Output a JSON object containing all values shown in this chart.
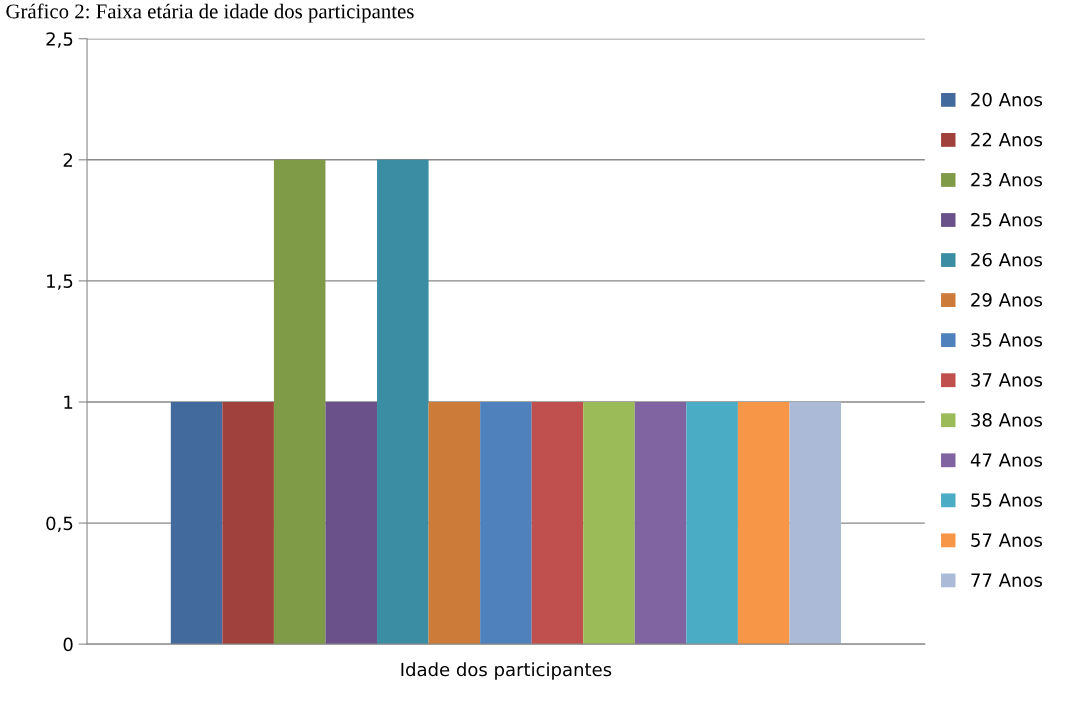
{
  "chart_data": {
    "type": "bar",
    "title": "Gráfico 2: Faixa etária de idade dos participantes",
    "categories": [
      "Idade dos participantes"
    ],
    "series": [
      {
        "name": "20 Anos",
        "color": "#426a9c",
        "values": [
          1
        ]
      },
      {
        "name": "22 Anos",
        "color": "#a0413e",
        "values": [
          1
        ]
      },
      {
        "name": "23 Anos",
        "color": "#809b47",
        "values": [
          2
        ]
      },
      {
        "name": "25 Anos",
        "color": "#6a5189",
        "values": [
          1
        ]
      },
      {
        "name": "26 Anos",
        "color": "#3b8da4",
        "values": [
          2
        ]
      },
      {
        "name": "29 Anos",
        "color": "#cc7b38",
        "values": [
          1
        ]
      },
      {
        "name": "35 Anos",
        "color": "#4f81bd",
        "values": [
          1
        ]
      },
      {
        "name": "37 Anos",
        "color": "#c0504d",
        "values": [
          1
        ]
      },
      {
        "name": "38 Anos",
        "color": "#9bbb59",
        "values": [
          1
        ]
      },
      {
        "name": "47 Anos",
        "color": "#8064a2",
        "values": [
          1
        ]
      },
      {
        "name": "55 Anos",
        "color": "#4bacc6",
        "values": [
          1
        ]
      },
      {
        "name": "57 Anos",
        "color": "#f79646",
        "values": [
          1
        ]
      },
      {
        "name": "77 Anos",
        "color": "#aabad7",
        "values": [
          1
        ]
      }
    ],
    "ylim": [
      0,
      2.5
    ],
    "yticks": [
      0,
      {
        "value": 0.5,
        "label": "0,5"
      },
      1,
      {
        "value": 1.5,
        "label": "1,5"
      },
      2,
      {
        "value": 2.5,
        "label": "2,5"
      }
    ],
    "grid": "y",
    "legend": "right"
  }
}
